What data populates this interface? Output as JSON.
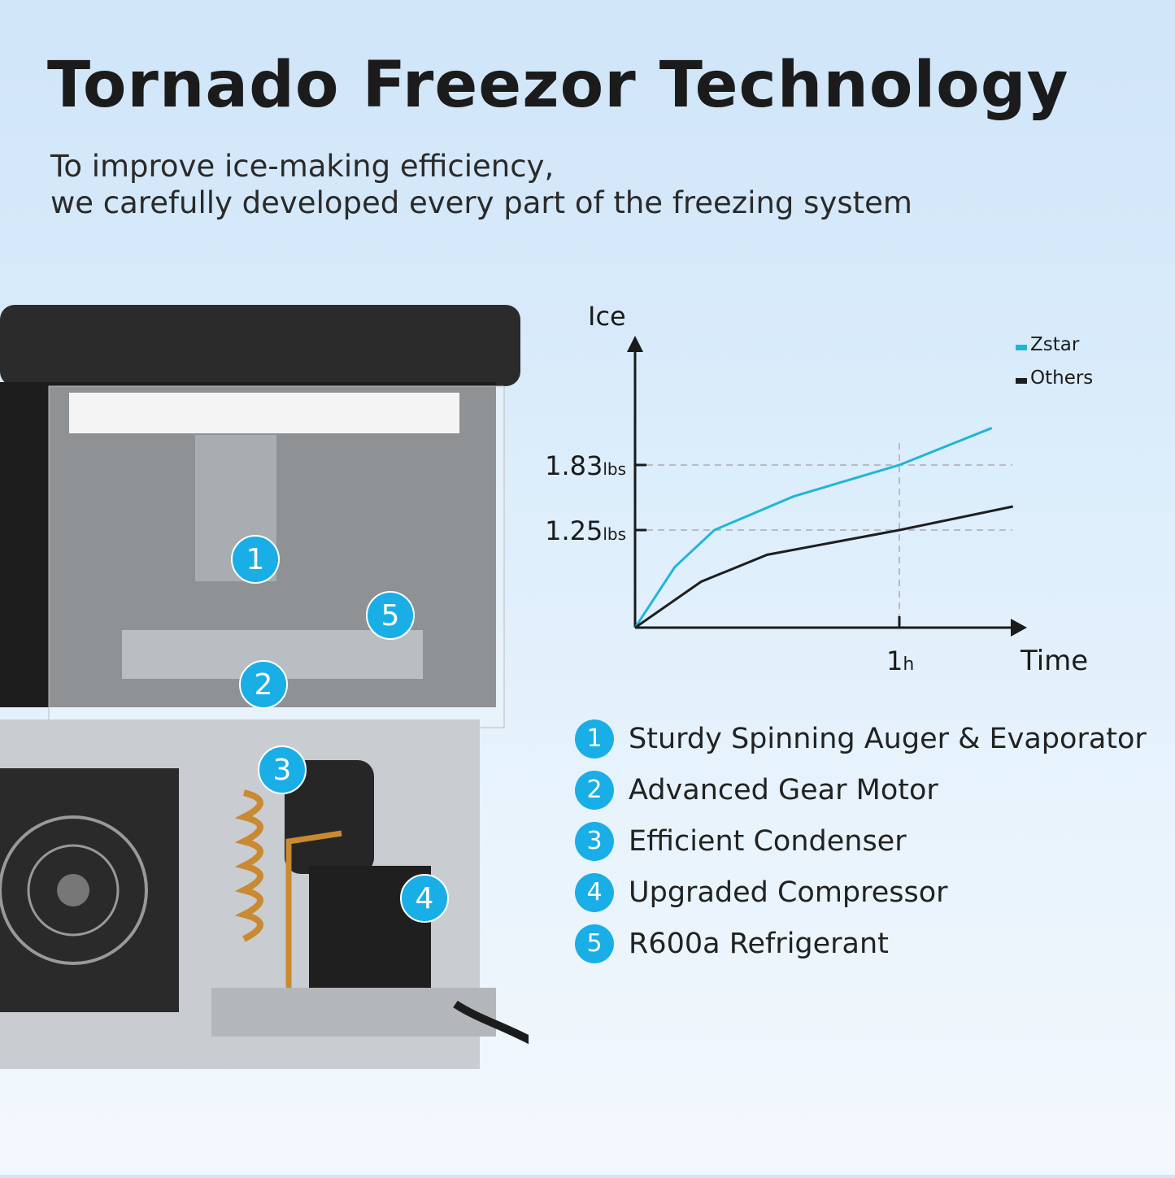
{
  "header": {
    "title": "Tornado Freezor Technology",
    "subtitle_line1": "To improve ice-making efficiency,",
    "subtitle_line2": "we carefully developed every part of the freezing system"
  },
  "colors": {
    "accent": "#1aaee6",
    "zstar": "#22b5d6",
    "others": "#1e1e1e"
  },
  "product": {
    "badges": [
      "1",
      "2",
      "3",
      "4",
      "5"
    ]
  },
  "chart_data": {
    "type": "line",
    "xlabel": "Time",
    "ylabel": "Ice",
    "x_ticks": [
      {
        "value": 1,
        "label": "1",
        "unit": "h"
      }
    ],
    "y_ticks": [
      {
        "value": 1.25,
        "label": "1.25",
        "unit": "lbs"
      },
      {
        "value": 1.83,
        "label": "1.83",
        "unit": "lbs"
      }
    ],
    "xlim": [
      0,
      1.5
    ],
    "ylim": [
      0.38,
      2.95
    ],
    "grid": "dashed reference lines at ticks",
    "legend": "top-right",
    "series": [
      {
        "name": "Zstar",
        "color": "#22b5d6",
        "x": [
          0,
          0.15,
          0.3,
          0.6,
          1,
          1.35
        ],
        "y": [
          0.38,
          0.92,
          1.25,
          1.55,
          1.83,
          2.16
        ]
      },
      {
        "name": "Others",
        "color": "#1e1e1e",
        "x": [
          0,
          0.25,
          0.5,
          1,
          1.43
        ],
        "y": [
          0.38,
          0.79,
          1.03,
          1.25,
          1.46
        ]
      }
    ]
  },
  "features": [
    {
      "num": "1",
      "label": "Sturdy Spinning Auger & Evaporator"
    },
    {
      "num": "2",
      "label": "Advanced Gear Motor"
    },
    {
      "num": "3",
      "label": "Efficient Condenser"
    },
    {
      "num": "4",
      "label": "Upgraded Compressor"
    },
    {
      "num": "5",
      "label": "R600a Refrigerant"
    }
  ]
}
